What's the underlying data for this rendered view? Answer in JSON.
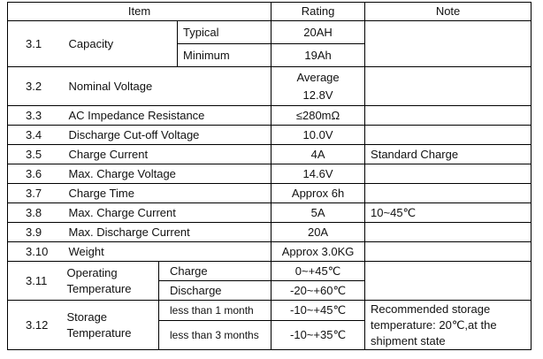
{
  "header": {
    "item": "Item",
    "rating": "Rating",
    "note": "Note"
  },
  "rows": {
    "r31": {
      "num": "3.1",
      "label": "Capacity",
      "sub1": "Typical",
      "val1": "20AH",
      "sub2": "Minimum",
      "val2": "19Ah",
      "note": ""
    },
    "r32": {
      "num": "3.2",
      "label": "Nominal Voltage",
      "val_line1": "Average",
      "val_line2": "12.8V",
      "note": ""
    },
    "r33": {
      "num": "3.3",
      "label": "AC Impedance Resistance",
      "val": "≤280mΩ",
      "note": ""
    },
    "r34": {
      "num": "3.4",
      "label": "Discharge Cut-off Voltage",
      "val": "10.0V",
      "note": ""
    },
    "r35": {
      "num": "3.5",
      "label": "Charge Current",
      "val": "4A",
      "note": "Standard Charge"
    },
    "r36": {
      "num": "3.6",
      "label": "Max. Charge Voltage",
      "val": "14.6V",
      "note": ""
    },
    "r37": {
      "num": "3.7",
      "label": "Charge Time",
      "val": "Approx 6h",
      "note": ""
    },
    "r38": {
      "num": "3.8",
      "label": "Max. Charge Current",
      "val": "5A",
      "note": "10~45℃"
    },
    "r39": {
      "num": "3.9",
      "label": "Max. Discharge Current",
      "val": "20A",
      "note": ""
    },
    "r310": {
      "num": "3.10",
      "label": "Weight",
      "val": "Approx 3.0KG",
      "note": ""
    },
    "r311": {
      "num": "3.11",
      "label_line1": "Operating",
      "label_line2": "Temperature",
      "sub1": "Charge",
      "val1": "0~+45℃",
      "sub2": "Discharge",
      "val2": "-20~+60℃",
      "note": ""
    },
    "r312": {
      "num": "3.12",
      "label_line1": "Storage",
      "label_line2": "Temperature",
      "sub1": "less than 1 month",
      "val1": "-10~+45℃",
      "sub2": "less than 3 months",
      "val2": "-10~+35℃",
      "note_line1": "Recommended storage",
      "note_line2": "temperature: 20℃,at the",
      "note_line3": "shipment state"
    }
  }
}
